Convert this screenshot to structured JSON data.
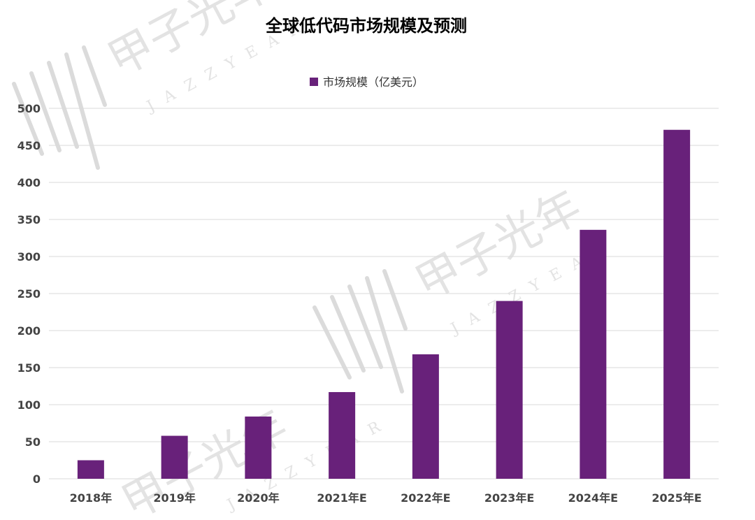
{
  "watermark": {
    "text": "甲子光年",
    "sub": "JAZZYEAR"
  },
  "chart_data": {
    "type": "bar",
    "title": "全球低代码市场规模及预测",
    "legend": {
      "position": "top-center",
      "entries": [
        "市场规模（亿美元）"
      ]
    },
    "categories": [
      "2018年",
      "2019年",
      "2020年",
      "2021年E",
      "2022年E",
      "2023年E",
      "2024年E",
      "2025年E"
    ],
    "series": [
      {
        "name": "市场规模（亿美元）",
        "values": [
          25,
          58,
          84,
          117,
          168,
          240,
          336,
          471
        ],
        "color": "#68217a"
      }
    ],
    "yticks": [
      0,
      50,
      100,
      150,
      200,
      250,
      300,
      350,
      400,
      450,
      500
    ],
    "ylim": [
      0,
      500
    ],
    "grid": true,
    "xlabel": "",
    "ylabel": ""
  }
}
